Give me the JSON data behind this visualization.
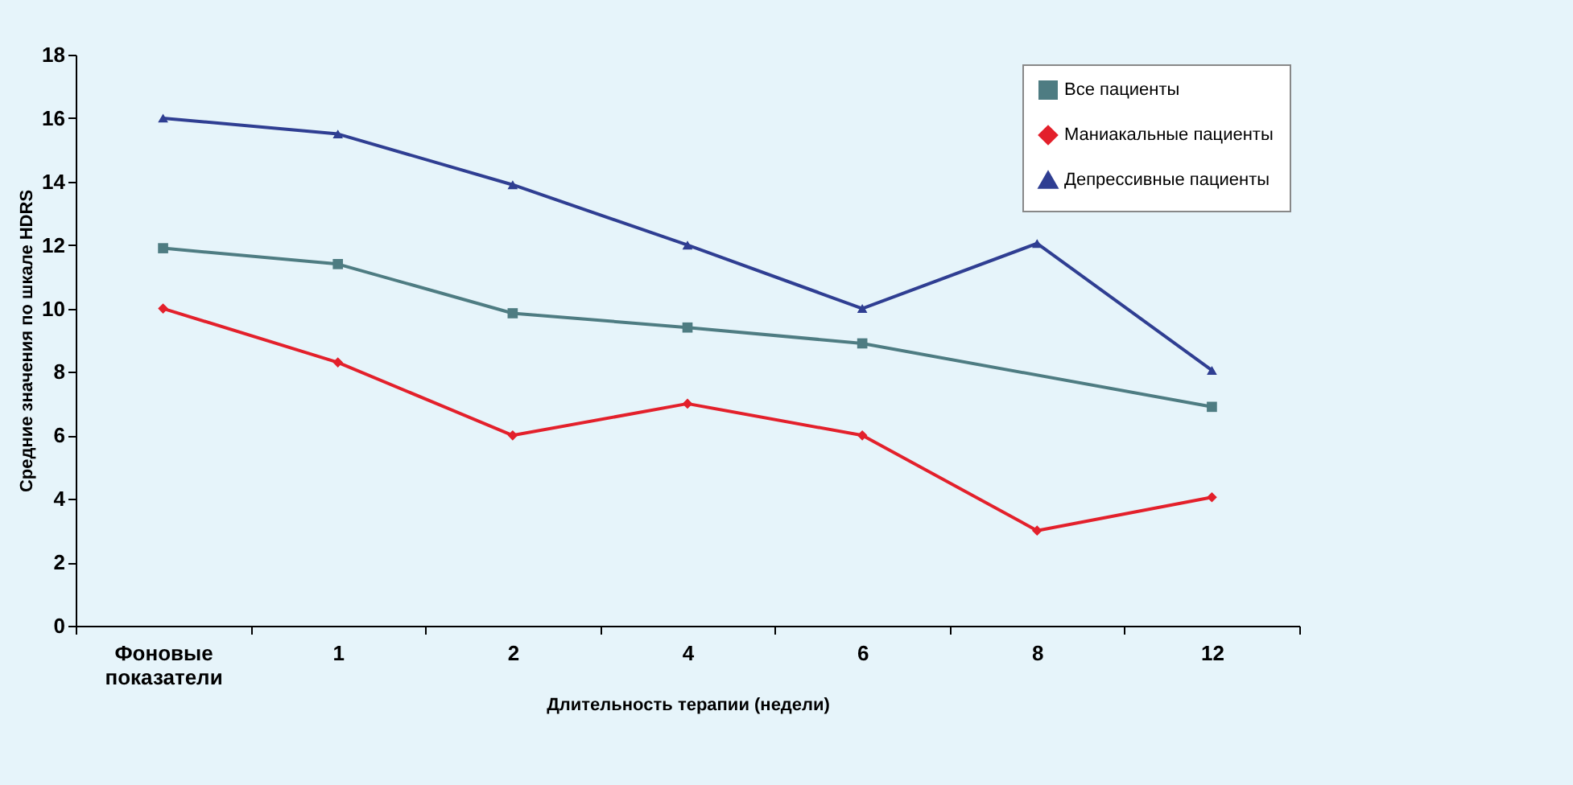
{
  "chart_data": {
    "type": "line",
    "xlabel": "Длительность  терапии (недели)",
    "ylabel": "Средние значения по шкале HDRS",
    "categories": [
      "Фоновые показатели",
      "1",
      "2",
      "4",
      "6",
      "8",
      "12"
    ],
    "ylim": [
      0,
      18
    ],
    "yticks": [
      0,
      2,
      4,
      6,
      8,
      10,
      12,
      14,
      16,
      18
    ],
    "grid": false,
    "legend": "top right",
    "series": [
      {
        "name": "Все пациенты",
        "color": "#4e7c82",
        "marker": "square",
        "values": [
          11.9,
          11.4,
          9.85,
          9.4,
          8.9,
          null,
          6.9
        ]
      },
      {
        "name": "Маниакальные пациенты",
        "color": "#e3202b",
        "marker": "diamond",
        "values": [
          10,
          8.3,
          6,
          7,
          6,
          3,
          4.05
        ]
      },
      {
        "name": "Депрессивные пациенты",
        "color": "#2f3e92",
        "marker": "triangle",
        "values": [
          16,
          15.5,
          13.9,
          12,
          10,
          12.05,
          8.05
        ]
      }
    ]
  }
}
